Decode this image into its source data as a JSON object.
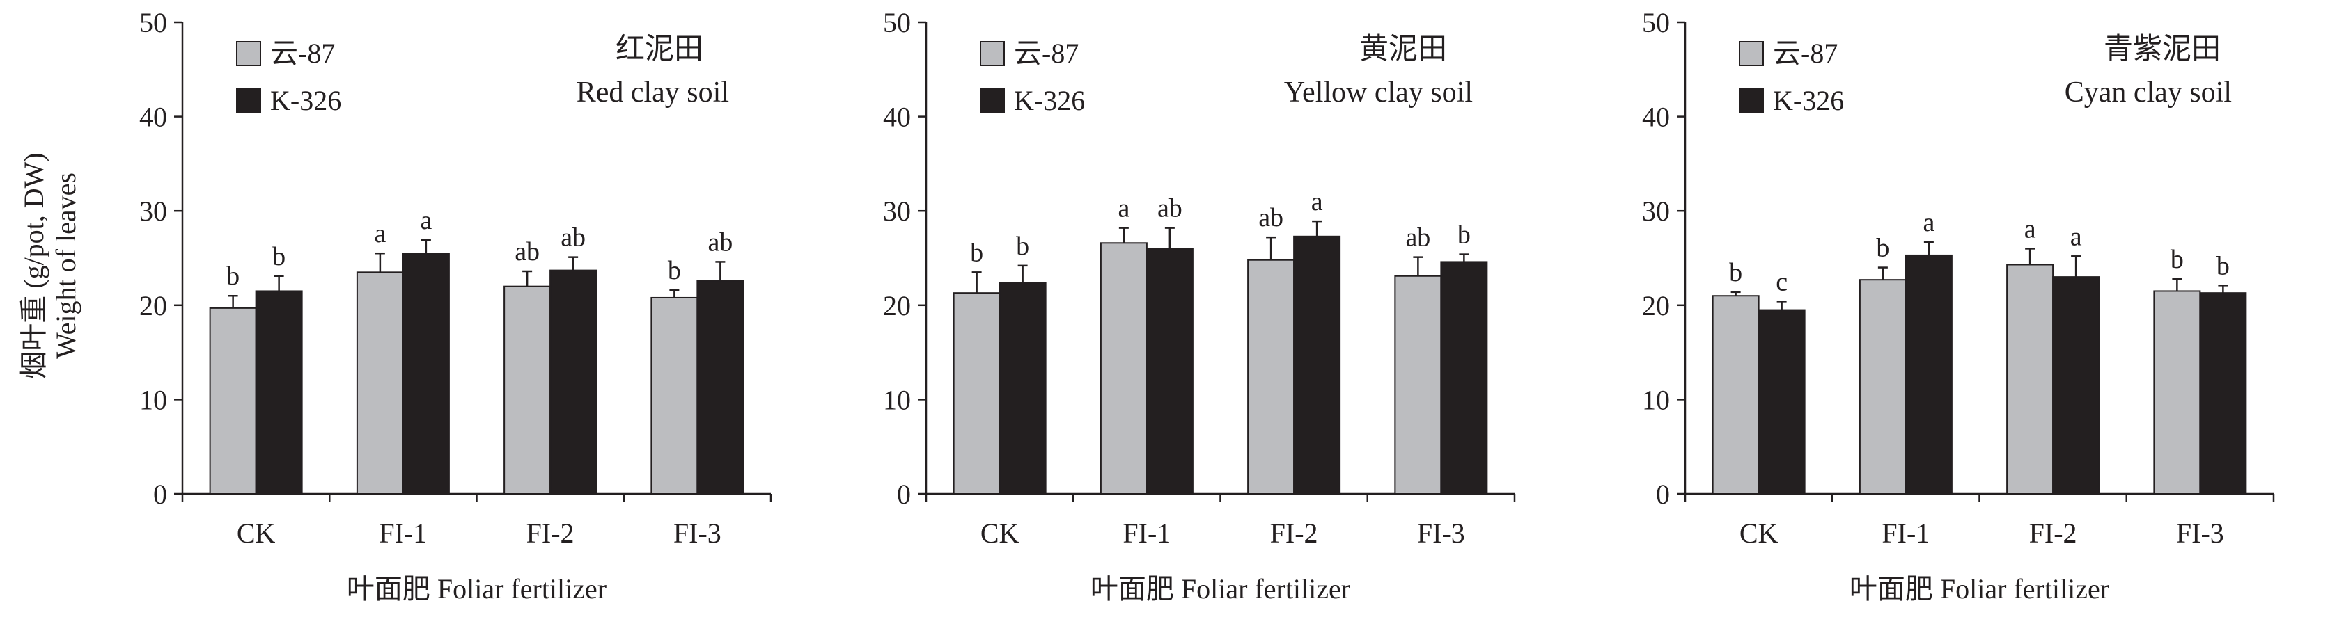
{
  "y_axis_label_cn": "烟叶重 (g/pot, DW)",
  "y_axis_label_en": "Weight of leaves",
  "colors": {
    "yun87": "#bcbdc0",
    "k326": "#231f20",
    "axis": "#231f20"
  },
  "chart_data": [
    {
      "type": "bar",
      "title_cn": "红泥田",
      "title_en": "Red clay soil",
      "xlabel": "叶面肥 Foliar fertilizer",
      "ylim": [
        0,
        50
      ],
      "yticks": [
        0,
        10,
        20,
        30,
        40,
        50
      ],
      "categories": [
        "CK",
        "FI-1",
        "FI-2",
        "FI-3"
      ],
      "legend_position": "top-left",
      "series": [
        {
          "name": "云-87",
          "values": [
            19.7,
            23.5,
            22.0,
            20.8
          ],
          "errors": [
            1.3,
            2.0,
            1.6,
            0.8
          ],
          "letters": [
            "b",
            "a",
            "ab",
            "b"
          ]
        },
        {
          "name": "K-326",
          "values": [
            21.5,
            25.5,
            23.7,
            22.6
          ],
          "errors": [
            1.6,
            1.4,
            1.4,
            2.0
          ],
          "letters": [
            "b",
            "a",
            "ab",
            "ab"
          ]
        }
      ]
    },
    {
      "type": "bar",
      "title_cn": "黄泥田",
      "title_en": "Yellow clay soil",
      "xlabel": "叶面肥 Foliar fertilizer",
      "ylim": [
        0,
        50
      ],
      "yticks": [
        0,
        10,
        20,
        30,
        40,
        50
      ],
      "categories": [
        "CK",
        "FI-1",
        "FI-2",
        "FI-3"
      ],
      "legend_position": "top-left",
      "series": [
        {
          "name": "云-87",
          "values": [
            21.3,
            26.6,
            24.8,
            23.1
          ],
          "errors": [
            2.2,
            1.6,
            2.4,
            2.0
          ],
          "letters": [
            "b",
            "a",
            "ab",
            "ab"
          ]
        },
        {
          "name": "K-326",
          "values": [
            22.4,
            26.0,
            27.3,
            24.6
          ],
          "errors": [
            1.8,
            2.2,
            1.6,
            0.8
          ],
          "letters": [
            "b",
            "ab",
            "a",
            "b"
          ]
        }
      ]
    },
    {
      "type": "bar",
      "title_cn": "青紫泥田",
      "title_en": "Cyan clay soil",
      "xlabel": "叶面肥 Foliar fertilizer",
      "ylim": [
        0,
        50
      ],
      "yticks": [
        0,
        10,
        20,
        30,
        40,
        50
      ],
      "categories": [
        "CK",
        "FI-1",
        "FI-2",
        "FI-3"
      ],
      "legend_position": "top-left",
      "series": [
        {
          "name": "云-87",
          "values": [
            21.0,
            22.7,
            24.3,
            21.5
          ],
          "errors": [
            0.4,
            1.3,
            1.7,
            1.3
          ],
          "letters": [
            "b",
            "b",
            "a",
            "b"
          ]
        },
        {
          "name": "K-326",
          "values": [
            19.5,
            25.3,
            23.0,
            21.3
          ],
          "errors": [
            0.9,
            1.4,
            2.2,
            0.8
          ],
          "letters": [
            "c",
            "a",
            "a",
            "b"
          ]
        }
      ]
    }
  ]
}
